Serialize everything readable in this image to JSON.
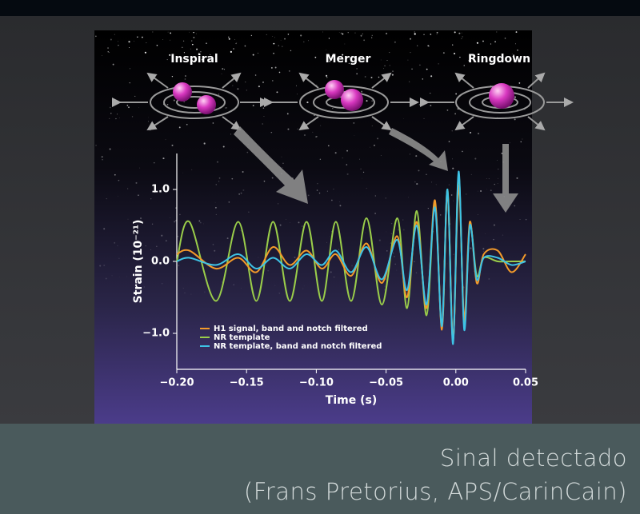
{
  "stages": [
    "Inspiral",
    "Merger",
    "Ringdown"
  ],
  "chart_data": {
    "type": "line",
    "xlabel": "Time (s)",
    "ylabel": "Strain (10⁻²¹)",
    "x": [
      -0.2,
      -0.191,
      -0.172,
      -0.156,
      -0.143,
      -0.131,
      -0.119,
      -0.107,
      -0.096,
      -0.086,
      -0.075,
      -0.064,
      -0.053,
      -0.042,
      -0.035,
      -0.028,
      -0.021,
      -0.015,
      -0.01,
      -0.006,
      -0.002,
      0.002,
      0.006,
      0.01,
      0.015,
      0.02,
      0.03,
      0.04,
      0.05
    ],
    "series": [
      {
        "name": "H1 signal, band and notch filtered",
        "color": "#f39a2a",
        "values": [
          0.1,
          0.15,
          -0.1,
          0.05,
          -0.15,
          0.2,
          -0.05,
          0.15,
          -0.1,
          0.1,
          -0.2,
          0.25,
          -0.3,
          0.35,
          -0.5,
          0.55,
          -0.65,
          0.85,
          -0.95,
          0.95,
          -1.1,
          1.05,
          -0.8,
          0.55,
          -0.3,
          0.1,
          0.15,
          -0.15,
          0.1
        ]
      },
      {
        "name": "NR template",
        "color": "#9acd4a",
        "values": [
          0,
          0.55,
          -0.55,
          0.55,
          -0.55,
          0.55,
          -0.55,
          0.55,
          -0.55,
          0.55,
          -0.55,
          0.6,
          -0.6,
          0.6,
          -0.65,
          0.7,
          -0.75,
          0.8,
          -0.9,
          1.0,
          -1.1,
          1.2,
          -0.9,
          0.5,
          -0.2,
          0.05,
          0,
          0,
          0
        ]
      },
      {
        "name": "NR template, band and notch filtered",
        "color": "#3ec3e6",
        "values": [
          0,
          0.05,
          -0.05,
          0.1,
          -0.1,
          0.05,
          -0.1,
          0.1,
          -0.05,
          0.15,
          -0.15,
          0.2,
          -0.25,
          0.3,
          -0.4,
          0.5,
          -0.6,
          0.75,
          -0.9,
          1.0,
          -1.15,
          1.25,
          -0.95,
          0.5,
          -0.25,
          0.05,
          0.05,
          -0.05,
          0
        ]
      }
    ],
    "xlim": [
      -0.2,
      0.05
    ],
    "ylim": [
      -1.5,
      1.5
    ],
    "xticks": [
      {
        "value": -0.2,
        "label": "−0.20"
      },
      {
        "value": -0.15,
        "label": "−0.15"
      },
      {
        "value": -0.1,
        "label": "−0.10"
      },
      {
        "value": -0.05,
        "label": "−0.05"
      },
      {
        "value": 0,
        "label": "0.00"
      },
      {
        "value": 0.05,
        "label": "0.05"
      }
    ],
    "yticks": [
      {
        "value": 1,
        "label": "1.0"
      },
      {
        "value": 0,
        "label": "0.0"
      },
      {
        "value": -1,
        "label": "−1.0"
      }
    ],
    "legend": "lower left"
  },
  "caption": [
    "Sinal detectado",
    "(Frans Pretorius, APS/CarinCain)"
  ]
}
